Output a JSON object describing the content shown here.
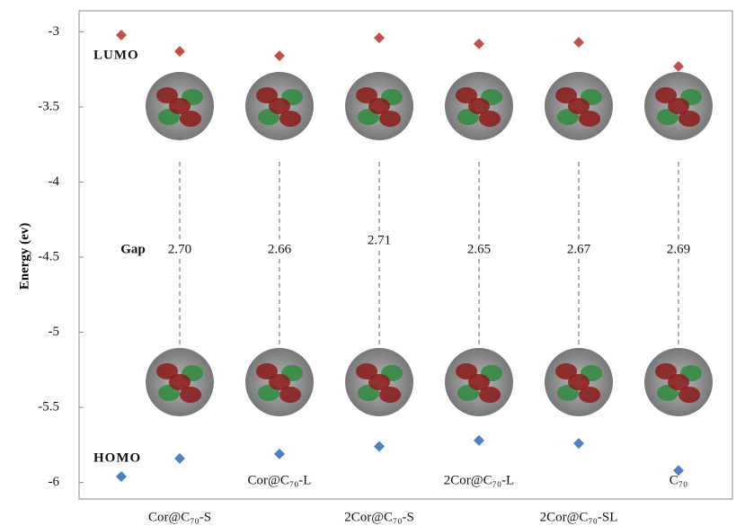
{
  "chart_data": {
    "type": "energy-level",
    "ylabel": "Energy (ev)",
    "categories": [
      "Cor@C₇₀-S",
      "Cor@C₇₀-L",
      "2Cor@C₇₀-S",
      "2Cor@C₇₀-L",
      "2Cor@C₇₀-SL",
      "C₇₀"
    ],
    "series": [
      {
        "name": "LUMO",
        "color": "#c0504d",
        "marker": "diamond",
        "values": [
          -3.13,
          -3.16,
          -3.04,
          -3.08,
          -3.07,
          -3.23
        ]
      },
      {
        "name": "HOMO",
        "color": "#4f81bd",
        "marker": "diamond",
        "values": [
          -5.84,
          -5.81,
          -5.76,
          -5.72,
          -5.74,
          -5.92
        ]
      }
    ],
    "gap": {
      "name": "Gap",
      "values": [
        2.7,
        2.66,
        2.71,
        2.65,
        2.67,
        2.69
      ],
      "value_labels": [
        "2.70",
        "2.66",
        "2.71",
        "2.65",
        "2.67",
        "2.69"
      ]
    },
    "ylim": [
      -6.11,
      -2.86
    ],
    "yticks": [
      {
        "value": -3,
        "label": "-3"
      },
      {
        "value": -3.5,
        "label": "-3.5"
      },
      {
        "value": -4,
        "label": "-4"
      },
      {
        "value": -4.5,
        "label": "-4.5"
      },
      {
        "value": -5,
        "label": "-5"
      },
      {
        "value": -5.5,
        "label": "-5.5"
      },
      {
        "value": -6,
        "label": "-6"
      }
    ]
  }
}
